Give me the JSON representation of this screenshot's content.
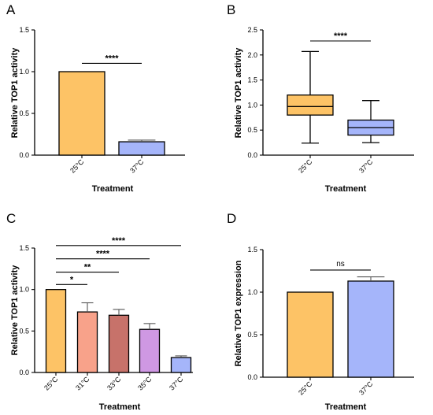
{
  "colors": {
    "c25": "#FDC366",
    "c31": "#F8A28A",
    "c33": "#C7726A",
    "c35": "#CF98E3",
    "c37": "#A5B5FA"
  },
  "chart_data": [
    {
      "panel": "A",
      "type": "bar",
      "categories": [
        "25°C",
        "37°C"
      ],
      "values": [
        1.0,
        0.16
      ],
      "errors": [
        0,
        0.02
      ],
      "colors": [
        "#FDC366",
        "#A5B5FA"
      ],
      "ylim": [
        0,
        1.5
      ],
      "yticks": [
        "0.0",
        "0.5",
        "1.0",
        "1.5"
      ],
      "ylabel": "Relative TOP1 activity",
      "xlabel": "Treatment",
      "significance": [
        {
          "from": 0,
          "to": 1,
          "label": "****",
          "y": 1.1
        }
      ]
    },
    {
      "panel": "B",
      "type": "box",
      "categories": [
        "25°C",
        "37°C"
      ],
      "boxes": [
        {
          "min": 0.24,
          "q1": 0.8,
          "median": 0.97,
          "q3": 1.2,
          "max": 2.07
        },
        {
          "min": 0.25,
          "q1": 0.4,
          "median": 0.55,
          "q3": 0.7,
          "max": 1.09
        }
      ],
      "colors": [
        "#FDC366",
        "#A5B5FA"
      ],
      "ylim": [
        0,
        2.5
      ],
      "yticks": [
        "0.0",
        "0.5",
        "1.0",
        "1.5",
        "2.0",
        "2.5"
      ],
      "ylabel": "Relative TOP1 activity",
      "xlabel": "Treatment",
      "significance": [
        {
          "from": 0,
          "to": 1,
          "label": "****",
          "y": 2.28
        }
      ]
    },
    {
      "panel": "C",
      "type": "bar",
      "categories": [
        "25°C",
        "31°C",
        "33°C",
        "35°C",
        "37°C"
      ],
      "values": [
        1.0,
        0.73,
        0.69,
        0.52,
        0.18
      ],
      "errors": [
        0,
        0.11,
        0.07,
        0.07,
        0.02
      ],
      "colors": [
        "#FDC366",
        "#F8A28A",
        "#C7726A",
        "#CF98E3",
        "#A5B5FA"
      ],
      "ylim": [
        0,
        1.5
      ],
      "yticks": [
        "0.0",
        "0.5",
        "1.0",
        "1.5"
      ],
      "ylabel": "Relative TOP1 activity",
      "xlabel": "Treatment",
      "significance": [
        {
          "from": 0,
          "to": 1,
          "label": "*",
          "y": 1.06
        },
        {
          "from": 0,
          "to": 2,
          "label": "**",
          "y": 1.21
        },
        {
          "from": 0,
          "to": 3,
          "label": "****",
          "y": 1.37
        },
        {
          "from": 0,
          "to": 4,
          "label": "****",
          "y": 1.53
        }
      ]
    },
    {
      "panel": "D",
      "type": "bar",
      "categories": [
        "25°C",
        "37°C"
      ],
      "values": [
        1.0,
        1.13
      ],
      "errors": [
        0,
        0.05
      ],
      "colors": [
        "#FDC366",
        "#A5B5FA"
      ],
      "ylim": [
        0,
        1.5
      ],
      "yticks": [
        "0.0",
        "0.5",
        "1.0",
        "1.5"
      ],
      "ylabel": "Relative TOP1 expression",
      "xlabel": "Treatment",
      "significance": [
        {
          "from": 0,
          "to": 1,
          "label": "ns",
          "y": 1.26
        }
      ]
    }
  ]
}
